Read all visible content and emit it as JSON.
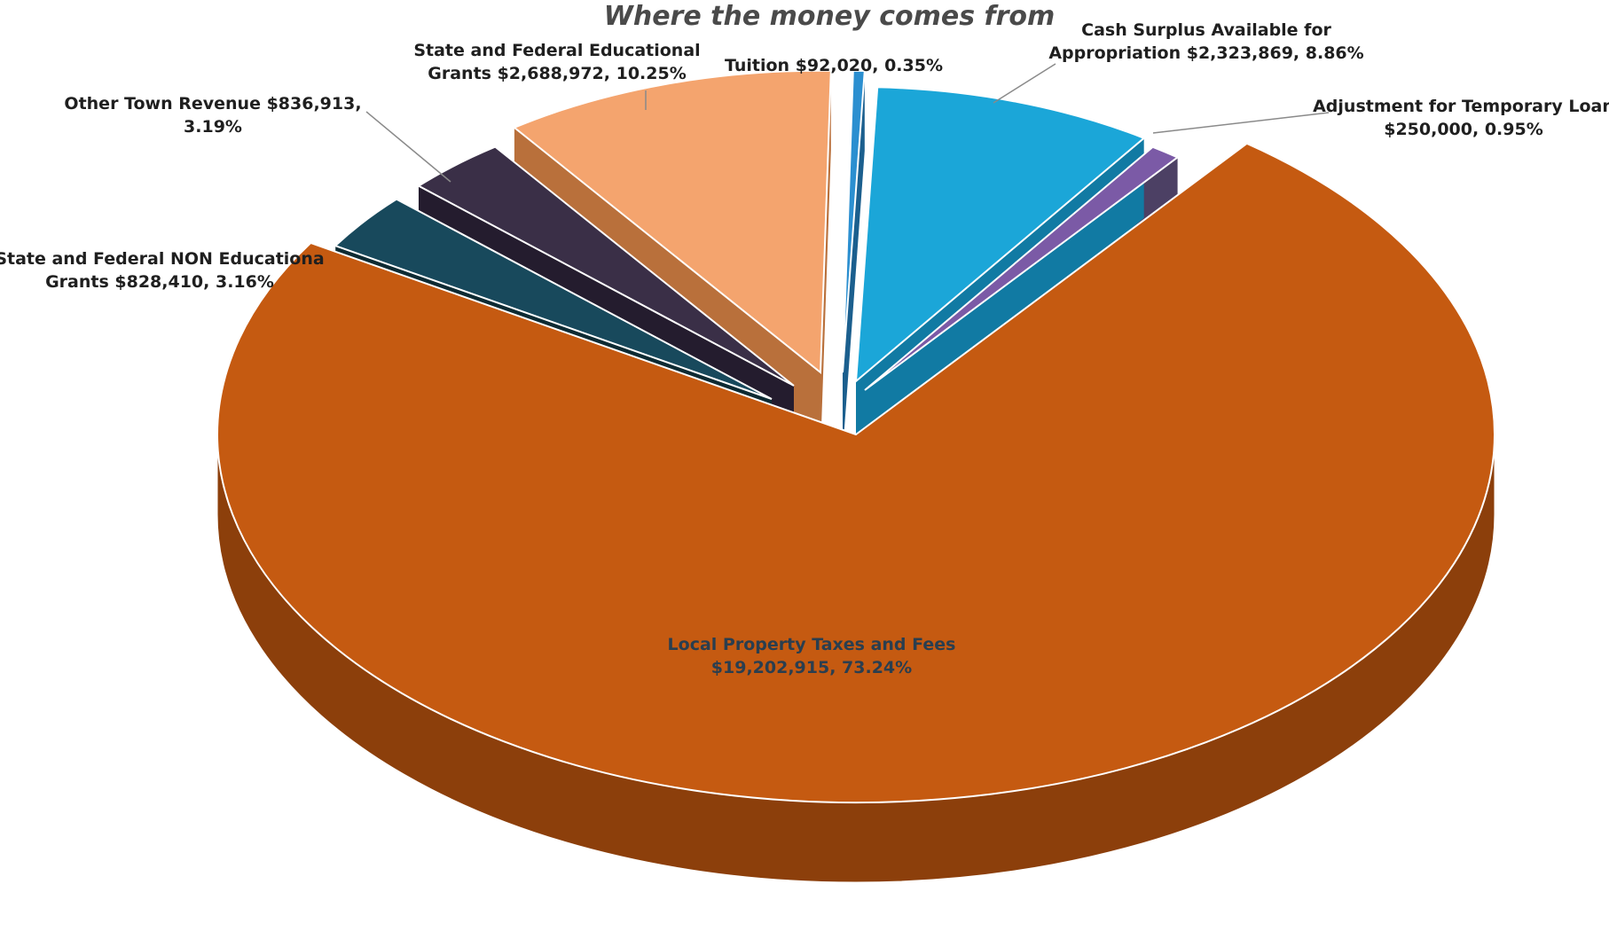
{
  "chart_data": {
    "type": "pie",
    "title": "Where the money comes from",
    "slices": [
      {
        "id": "local",
        "label_lines": [
          "Local Property Taxes and Fees",
          "$19,202,915, 73.24%"
        ],
        "value": 19202915,
        "percent": 73.24,
        "color": "#c55a11",
        "side_color": "#8c3f0b"
      },
      {
        "id": "nonedu",
        "label_lines": [
          "State and Federal NON Educationa",
          "Grants  $828,410, 3.16%"
        ],
        "value": 828410,
        "percent": 3.16,
        "color": "#18495c",
        "side_color": "#0e2b33"
      },
      {
        "id": "other",
        "label_lines": [
          "Other Town Revenue $836,913,",
          "3.19%"
        ],
        "value": 836913,
        "percent": 3.19,
        "color": "#3a2f47",
        "side_color": "#241c2e"
      },
      {
        "id": "edu",
        "label_lines": [
          "State and Federal Educational",
          "Grants  $2,688,972, 10.25%"
        ],
        "value": 2688972,
        "percent": 10.25,
        "color": "#f4a46e",
        "side_color": "#b9703b"
      },
      {
        "id": "tuition",
        "label_lines": [
          "Tuition  $92,020, 0.35%"
        ],
        "value": 92020,
        "percent": 0.35,
        "color": "#2b8fd0",
        "side_color": "#1b5f8e"
      },
      {
        "id": "surplus",
        "label_lines": [
          "Cash Surplus Available for",
          "Appropriation    $2,323,869, 8.86%"
        ],
        "value": 2323869,
        "percent": 8.86,
        "color": "#1ba6d8",
        "side_color": "#117aa3"
      },
      {
        "id": "loan",
        "label_lines": [
          "Adjustment for Temporary Loan",
          "$250,000, 0.95%"
        ],
        "value": 250000,
        "percent": 0.95,
        "color": "#7b5aa6",
        "side_color": "#4c4064"
      }
    ]
  }
}
